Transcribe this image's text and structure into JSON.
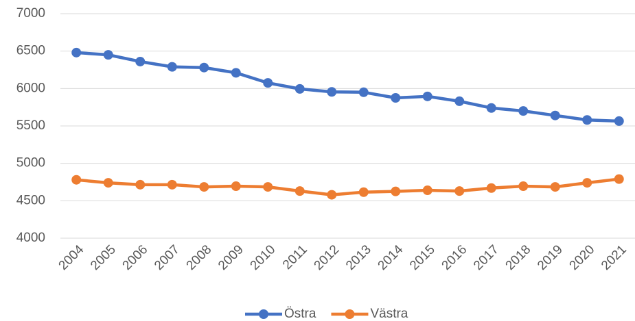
{
  "chart_data": {
    "type": "line",
    "categories": [
      "2004",
      "2005",
      "2006",
      "2007",
      "2008",
      "2009",
      "2010",
      "2011",
      "2012",
      "2013",
      "2014",
      "2015",
      "2016",
      "2017",
      "2018",
      "2019",
      "2020",
      "2021"
    ],
    "series": [
      {
        "name": "Östra",
        "color": "#4472c4",
        "values": [
          6480,
          6450,
          6360,
          6290,
          6280,
          6210,
          6075,
          5995,
          5955,
          5950,
          5875,
          5895,
          5830,
          5740,
          5700,
          5640,
          5580,
          5565
        ]
      },
      {
        "name": "Västra",
        "color": "#ed7d31",
        "values": [
          4780,
          4740,
          4715,
          4715,
          4685,
          4695,
          4685,
          4630,
          4580,
          4615,
          4625,
          4640,
          4630,
          4670,
          4695,
          4685,
          4740,
          4790
        ]
      }
    ],
    "ylim": [
      4000,
      7000
    ],
    "yticks": [
      4000,
      4500,
      5000,
      5500,
      6000,
      6500,
      7000
    ],
    "grid": true,
    "legend": "bottom"
  }
}
